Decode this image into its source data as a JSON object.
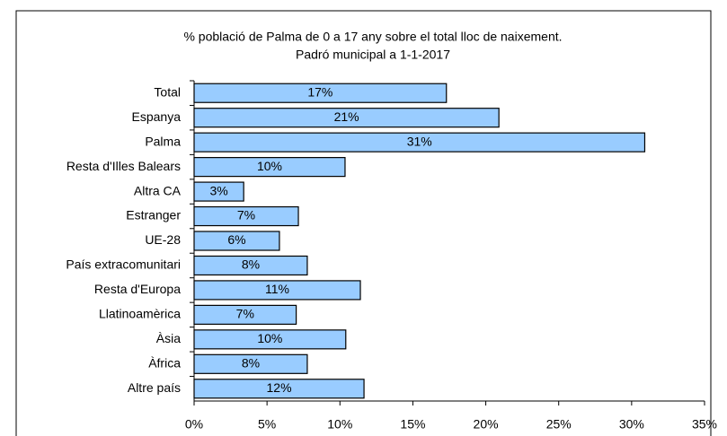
{
  "chart_data": {
    "type": "barh",
    "title": [
      "% població de Palma de 0 a 17 any sobre el total  lloc de naixement.",
      "Padró municipal a 1-1-2017"
    ],
    "categories": [
      "Total",
      "Espanya",
      "Palma",
      "Resta d'Illes Balears",
      "Altra CA",
      "Estranger",
      "UE-28",
      "País extracomunitari",
      "Resta d'Europa",
      "Llatinoamèrica",
      "Àsia",
      "Àfrica",
      "Altre país"
    ],
    "values": [
      17.3,
      20.9,
      30.9,
      10.35,
      3.4,
      7.15,
      5.85,
      7.76,
      11.4,
      7.0,
      10.4,
      7.76,
      11.65
    ],
    "value_labels": [
      "17%",
      "21%",
      "31%",
      "10%",
      "3%",
      "7%",
      "6%",
      "8%",
      "11%",
      "7%",
      "10%",
      "8%",
      "12%"
    ],
    "color": "#99ccff",
    "xlim": [
      0,
      35
    ],
    "xticks": [
      {
        "value": 0,
        "label": "0%"
      },
      {
        "value": 5,
        "label": "5%"
      },
      {
        "value": 10,
        "label": "10%"
      },
      {
        "value": 15,
        "label": "15%"
      },
      {
        "value": 20,
        "label": "20%"
      },
      {
        "value": 25,
        "label": "25%"
      },
      {
        "value": 30,
        "label": "30%"
      },
      {
        "value": 35,
        "label": "35%"
      }
    ],
    "grid": false
  }
}
